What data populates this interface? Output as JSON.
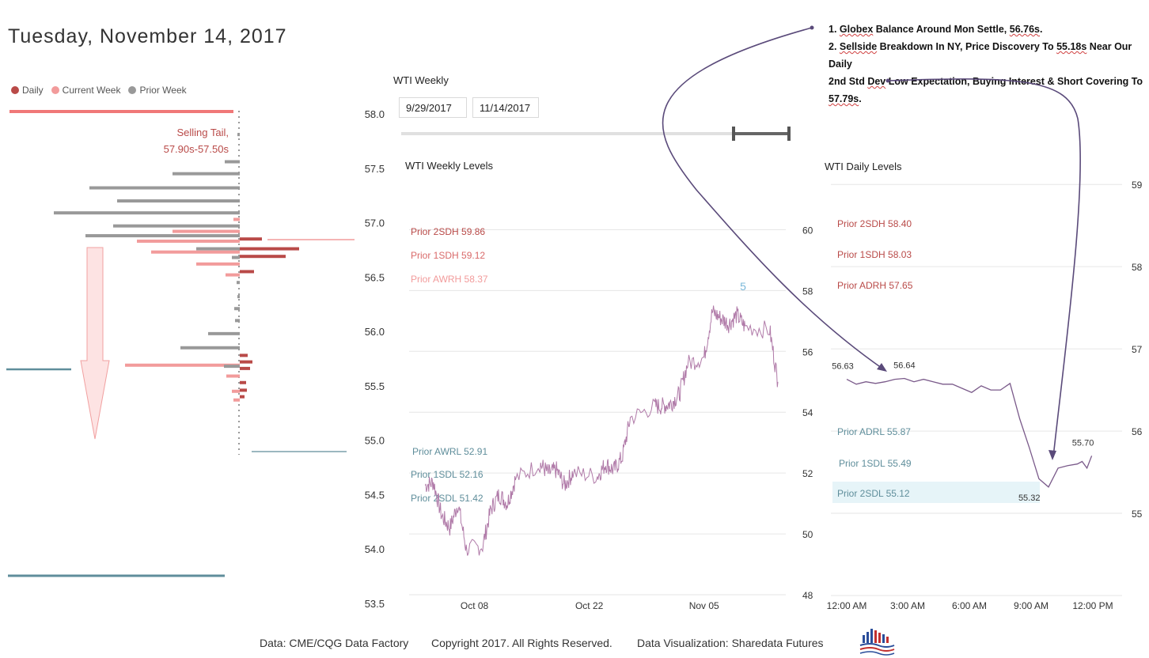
{
  "title": "Tuesday, November 14, 2017",
  "legend": [
    {
      "label": "Daily",
      "color": "#b94a48"
    },
    {
      "label": "Current Week",
      "color": "#f29b9b"
    },
    {
      "label": "Prior Week",
      "color": "#999999"
    }
  ],
  "profile": {
    "annotation_line1": "Selling Tail,",
    "annotation_line2": "57.90s-57.50s",
    "price_axis": [
      "58.0",
      "57.5",
      "57.0",
      "56.5",
      "56.0",
      "55.5",
      "55.0",
      "54.5",
      "54.0",
      "53.5"
    ]
  },
  "weekly_slicer": {
    "label": "WTI Weekly",
    "start_date": "9/29/2017",
    "end_date": "11/14/2017"
  },
  "notes": {
    "line1_prefix": "1. ",
    "line1_ul1": "Globex",
    "line1_mid": " Balance Around Mon Settle, ",
    "line1_ul2": "56.76s",
    "line1_end": ".",
    "line2_prefix": "2. ",
    "line2_ul1": "Sellside",
    "line2_mid": " Breakdown In NY, Price Discovery To ",
    "line2_ul2": "55.18s",
    "line2_end": " Near Our Daily",
    "line3_prefix": "2nd Std ",
    "line3_ul1": "Dev",
    "line3_end": " Low Expectation, Buying Interest & Short Covering To",
    "line4_ul1": "57.79s",
    "line4_end": "."
  },
  "chart_data": [
    {
      "type": "bar",
      "title": "",
      "note": "volume profile",
      "ylim": [
        53.5,
        58.0
      ],
      "legend_position": "top-left",
      "series": [
        {
          "name": "Daily",
          "color": "#b94a48",
          "points": [
            [
              56.85,
              0.28
            ],
            [
              56.76,
              0.75
            ],
            [
              56.69,
              0.58
            ],
            [
              56.55,
              0.18
            ],
            [
              55.78,
              0.1
            ],
            [
              55.72,
              0.16
            ],
            [
              55.66,
              0.13
            ],
            [
              55.53,
              0.08
            ],
            [
              55.46,
              0.09
            ],
            [
              55.4,
              0.06
            ]
          ]
        },
        {
          "name": "Current Week",
          "color": "#f29b9b",
          "points": [
            [
              57.03,
              0.08
            ],
            [
              56.92,
              0.85
            ],
            [
              56.83,
              1.3
            ],
            [
              56.73,
              1.12
            ],
            [
              56.62,
              0.55
            ],
            [
              56.52,
              0.18
            ],
            [
              55.69,
              1.45
            ],
            [
              55.59,
              0.17
            ],
            [
              55.45,
              0.1
            ],
            [
              55.37,
              0.08
            ]
          ]
        },
        {
          "name": "Prior Week",
          "color": "#999999",
          "points": [
            [
              57.81,
              0.02
            ],
            [
              57.56,
              0.19
            ],
            [
              57.45,
              0.85
            ],
            [
              57.32,
              1.9
            ],
            [
              57.2,
              1.55
            ],
            [
              57.09,
              2.35
            ],
            [
              56.97,
              1.6
            ],
            [
              56.88,
              1.95
            ],
            [
              56.76,
              0.55
            ],
            [
              56.68,
              0.1
            ],
            [
              56.45,
              0.04
            ],
            [
              56.32,
              0.03
            ],
            [
              56.21,
              0.07
            ],
            [
              56.1,
              0.06
            ],
            [
              55.98,
              0.4
            ],
            [
              55.85,
              0.75
            ],
            [
              55.68,
              0.2
            ]
          ]
        }
      ]
    },
    {
      "type": "line",
      "title": "WTI Weekly Levels",
      "x_ticks": [
        "Oct 08",
        "Oct 22",
        "Nov 05"
      ],
      "y_ticks": [
        48,
        50,
        52,
        54,
        56,
        58,
        60
      ],
      "ylim": [
        48,
        61
      ],
      "label_5": "5",
      "levels": [
        {
          "label": "Prior 2SDH 59.86",
          "value": 59.86,
          "color": "#b94a48"
        },
        {
          "label": "Prior 1SDH 59.12",
          "value": 59.12,
          "color": "#d96a6a"
        },
        {
          "label": "Prior AWRH 58.37",
          "value": 58.37,
          "color": "#f29b9b"
        },
        {
          "label": "Prior AWRL 52.91",
          "value": 52.91,
          "color": "#5f8e9b"
        },
        {
          "label": "Prior 1SDL 52.16",
          "value": 52.16,
          "color": "#5f8e9b"
        },
        {
          "label": "Prior 2SDL 51.42",
          "value": 51.42,
          "color": "#5f8e9b"
        }
      ],
      "series": [
        {
          "points": [
            [
              "Oct 02",
              51.6
            ],
            [
              "Oct 03",
              51.7
            ],
            [
              "Oct 04",
              50.6
            ],
            [
              "Oct 05",
              50.2
            ],
            [
              "Oct 06",
              51.0
            ],
            [
              "Oct 07",
              49.5
            ],
            [
              "Oct 09",
              49.6
            ],
            [
              "Oct 10",
              50.8
            ],
            [
              "Oct 11",
              51.3
            ],
            [
              "Oct 12",
              51.0
            ],
            [
              "Oct 13",
              51.8
            ],
            [
              "Oct 16",
              52.3
            ],
            [
              "Oct 17",
              52.0
            ],
            [
              "Oct 18",
              52.1
            ],
            [
              "Oct 19",
              51.6
            ],
            [
              "Oct 20",
              52.0
            ],
            [
              "Oct 23",
              51.9
            ],
            [
              "Oct 24",
              52.3
            ],
            [
              "Oct 25",
              52.1
            ],
            [
              "Oct 26",
              52.5
            ],
            [
              "Oct 27",
              53.8
            ],
            [
              "Oct 30",
              54.2
            ],
            [
              "Oct 31",
              54.2
            ],
            [
              "Nov 01",
              54.3
            ],
            [
              "Nov 02",
              54.6
            ],
            [
              "Nov 03",
              55.6
            ],
            [
              "Nov 05",
              55.8
            ],
            [
              "Nov 06",
              57.3
            ],
            [
              "Nov 07",
              57.1
            ],
            [
              "Nov 08",
              56.9
            ],
            [
              "Nov 09",
              57.2
            ],
            [
              "Nov 10",
              56.8
            ],
            [
              "Nov 13",
              56.7
            ],
            [
              "Nov 14",
              55.0
            ]
          ]
        }
      ]
    },
    {
      "type": "line",
      "title": "WTI Daily Levels",
      "x_ticks": [
        "12:00 AM",
        "3:00 AM",
        "6:00 AM",
        "9:00 AM",
        "12:00 PM"
      ],
      "y_ticks": [
        55,
        56,
        57,
        58,
        59
      ],
      "ylim": [
        54,
        59.3
      ],
      "levels": [
        {
          "label": "Prior 2SDH 58.40",
          "value": 58.4,
          "color": "#b94a48"
        },
        {
          "label": "Prior 1SDH 58.03",
          "value": 58.03,
          "color": "#b94a48"
        },
        {
          "label": "Prior ADRH 57.65",
          "value": 57.65,
          "color": "#b94a48"
        },
        {
          "label": "Prior ADRL 55.87",
          "value": 55.87,
          "color": "#5f8e9b"
        },
        {
          "label": "Prior 1SDL 55.49",
          "value": 55.49,
          "color": "#5f8e9b"
        },
        {
          "label": "Prior 2SDL 55.12",
          "value": 55.12,
          "color": "#5f8e9b"
        }
      ],
      "point_labels": [
        {
          "time": "12:00 AM",
          "value": 56.63,
          "label": "56.63"
        },
        {
          "time": "3:00 AM",
          "value": 56.64,
          "label": "56.64"
        },
        {
          "time": "9:30 AM",
          "value": 55.32,
          "label": "55.32"
        },
        {
          "time": "12:30 PM",
          "value": 55.7,
          "label": "55.70"
        }
      ],
      "series": [
        {
          "points": [
            [
              "12:00 AM",
              56.63
            ],
            [
              "12:30 AM",
              56.57
            ],
            [
              "1:00 AM",
              56.6
            ],
            [
              "1:30 AM",
              56.58
            ],
            [
              "2:00 AM",
              56.6
            ],
            [
              "2:30 AM",
              56.63
            ],
            [
              "3:00 AM",
              56.64
            ],
            [
              "3:30 AM",
              56.6
            ],
            [
              "4:00 AM",
              56.63
            ],
            [
              "4:30 AM",
              56.6
            ],
            [
              "5:00 AM",
              56.57
            ],
            [
              "5:30 AM",
              56.57
            ],
            [
              "6:00 AM",
              56.52
            ],
            [
              "6:30 AM",
              56.47
            ],
            [
              "7:00 AM",
              56.55
            ],
            [
              "7:30 AM",
              56.5
            ],
            [
              "8:00 AM",
              56.5
            ],
            [
              "8:30 AM",
              56.58
            ],
            [
              "9:00 AM",
              56.15
            ],
            [
              "9:30 AM",
              55.8
            ],
            [
              "10:00 AM",
              55.42
            ],
            [
              "10:30 AM",
              55.32
            ],
            [
              "11:00 AM",
              55.55
            ],
            [
              "11:30 AM",
              55.58
            ],
            [
              "12:00 PM",
              55.6
            ],
            [
              "12:15 PM",
              55.63
            ],
            [
              "12:30 PM",
              55.55
            ],
            [
              "12:45 PM",
              55.7
            ]
          ]
        }
      ]
    }
  ],
  "footer": {
    "data_source": "Data: CME/CQG Data Factory",
    "copyright": "Copyright 2017. All Rights Reserved.",
    "visualization": "Data Visualization: Sharedata Futures"
  }
}
